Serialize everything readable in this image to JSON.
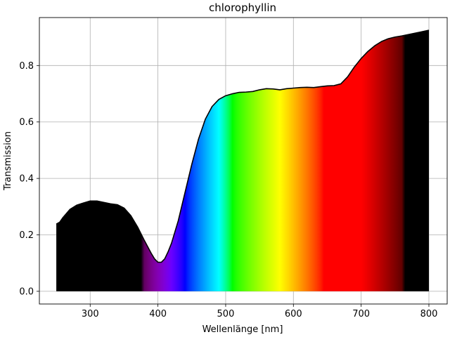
{
  "chart_data": {
    "type": "area",
    "title": "chlorophyllin",
    "xlabel": "Wellenlänge [nm]",
    "ylabel": "Transmission",
    "xlim": [
      225,
      827
    ],
    "ylim": [
      -0.045,
      0.97
    ],
    "xticks": [
      300,
      400,
      500,
      600,
      700,
      800
    ],
    "yticks": [
      0.0,
      0.2,
      0.4,
      0.6,
      0.8
    ],
    "xtick_labels": [
      "300",
      "400",
      "500",
      "600",
      "700",
      "800"
    ],
    "ytick_labels": [
      "0.0",
      "0.2",
      "0.4",
      "0.6",
      "0.8"
    ],
    "grid": true,
    "fill": "visible-spectrum gradient below curve (black outside ~380–760 nm)",
    "line_color": "#000000",
    "series": [
      {
        "x": [
          250,
          255,
          260,
          270,
          280,
          290,
          300,
          310,
          320,
          330,
          340,
          350,
          360,
          370,
          380,
          390,
          395,
          400,
          405,
          410,
          415,
          420,
          430,
          440,
          450,
          460,
          470,
          480,
          490,
          500,
          510,
          520,
          530,
          540,
          550,
          560,
          570,
          580,
          590,
          600,
          610,
          620,
          630,
          640,
          650,
          660,
          670,
          680,
          690,
          700,
          710,
          720,
          730,
          740,
          750,
          760,
          770,
          780,
          790,
          800
        ],
        "y": [
          0.238,
          0.245,
          0.262,
          0.29,
          0.305,
          0.313,
          0.32,
          0.32,
          0.315,
          0.31,
          0.307,
          0.295,
          0.268,
          0.228,
          0.18,
          0.135,
          0.115,
          0.103,
          0.103,
          0.115,
          0.14,
          0.17,
          0.25,
          0.35,
          0.45,
          0.54,
          0.61,
          0.655,
          0.68,
          0.693,
          0.7,
          0.705,
          0.706,
          0.708,
          0.714,
          0.718,
          0.717,
          0.714,
          0.718,
          0.72,
          0.722,
          0.723,
          0.722,
          0.725,
          0.728,
          0.729,
          0.735,
          0.76,
          0.795,
          0.825,
          0.85,
          0.87,
          0.885,
          0.895,
          0.901,
          0.905,
          0.91,
          0.915,
          0.92,
          0.925
        ]
      }
    ]
  }
}
